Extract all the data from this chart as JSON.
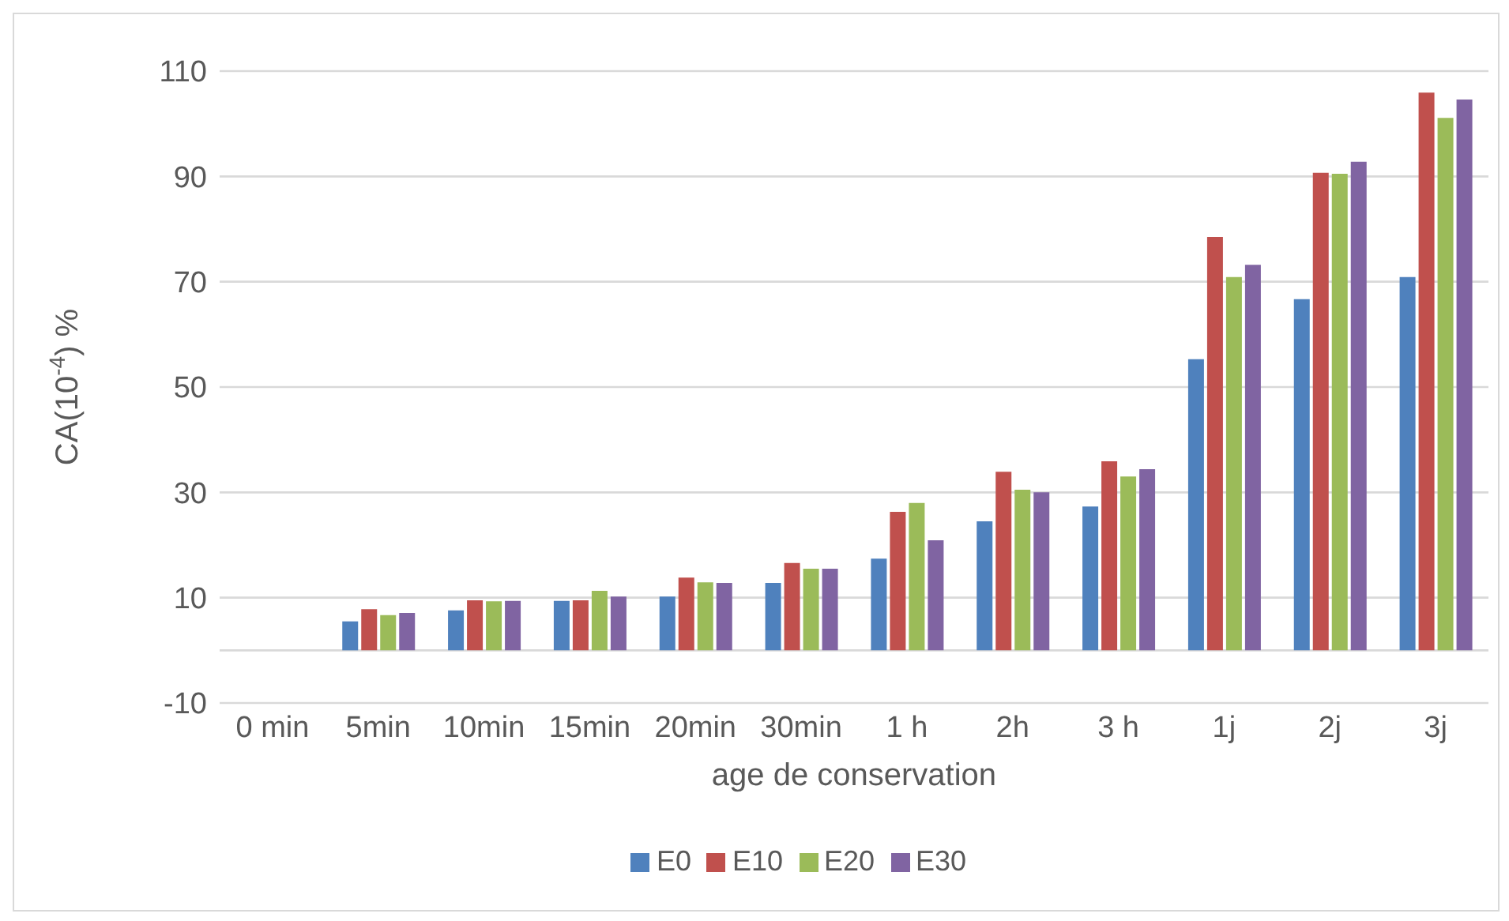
{
  "chart_data": {
    "type": "bar",
    "xlabel": "age de conservation",
    "ylabel": "CA(10$^{-4}$) %",
    "categories": [
      "0 min",
      "5min",
      "10min",
      "15min",
      "20min",
      "30min",
      "1 h",
      "2h",
      "3 h",
      "1j",
      "2j",
      "3j"
    ],
    "series": [
      {
        "name": "E0",
        "color": "#4f81bd",
        "values": [
          null,
          5.5,
          7.6,
          9.4,
          10.2,
          12.8,
          17.4,
          24.5,
          27.3,
          55.3,
          66.7,
          70.9
        ]
      },
      {
        "name": "E10",
        "color": "#c0504d",
        "values": [
          null,
          7.8,
          9.5,
          9.5,
          13.8,
          16.6,
          26.3,
          33.9,
          35.9,
          78.5,
          90.7,
          105.9
        ]
      },
      {
        "name": "E20",
        "color": "#9bbb59",
        "values": [
          null,
          6.7,
          9.3,
          11.3,
          12.9,
          15.5,
          28.0,
          30.5,
          33.0,
          70.9,
          90.5,
          101.1
        ]
      },
      {
        "name": "E30",
        "color": "#8064a2",
        "values": [
          null,
          7.1,
          9.4,
          10.2,
          12.8,
          15.5,
          20.9,
          30.0,
          34.4,
          73.2,
          92.8,
          104.6
        ]
      }
    ],
    "ylim": [
      -10,
      110
    ],
    "yticks": [
      -10,
      {
        "value": 0,
        "label": null
      },
      10,
      30,
      50,
      70,
      90,
      110
    ],
    "grid": "y",
    "legend": "bottom"
  }
}
